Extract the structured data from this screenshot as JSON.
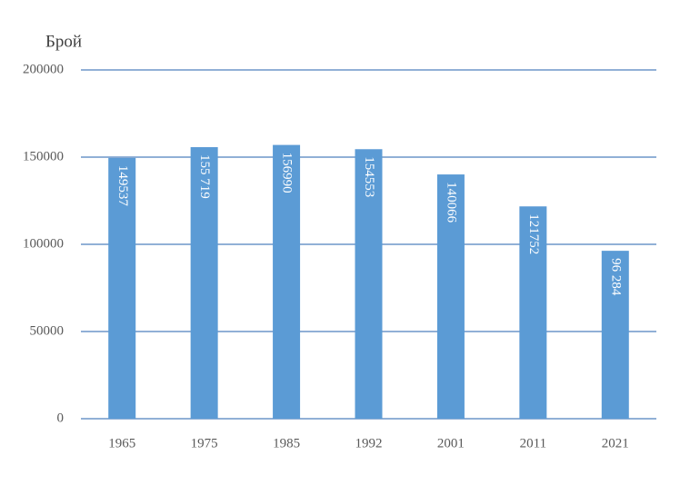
{
  "chart_data": {
    "type": "bar",
    "y_label": "Брой",
    "categories": [
      "1965",
      "1975",
      "1985",
      "1992",
      "2001",
      "2011",
      "2021"
    ],
    "values": [
      149537,
      155719,
      156990,
      154553,
      140066,
      121752,
      96284
    ],
    "value_labels": [
      "149537",
      "155 719",
      "156990",
      "154553",
      "140066",
      "121752",
      "96 284"
    ],
    "color": "#5b9bd5",
    "ylim": [
      0,
      200000
    ],
    "yticks": [
      0,
      50000,
      100000,
      150000,
      200000
    ],
    "grid": true,
    "grid_color": "#4f81bd"
  }
}
